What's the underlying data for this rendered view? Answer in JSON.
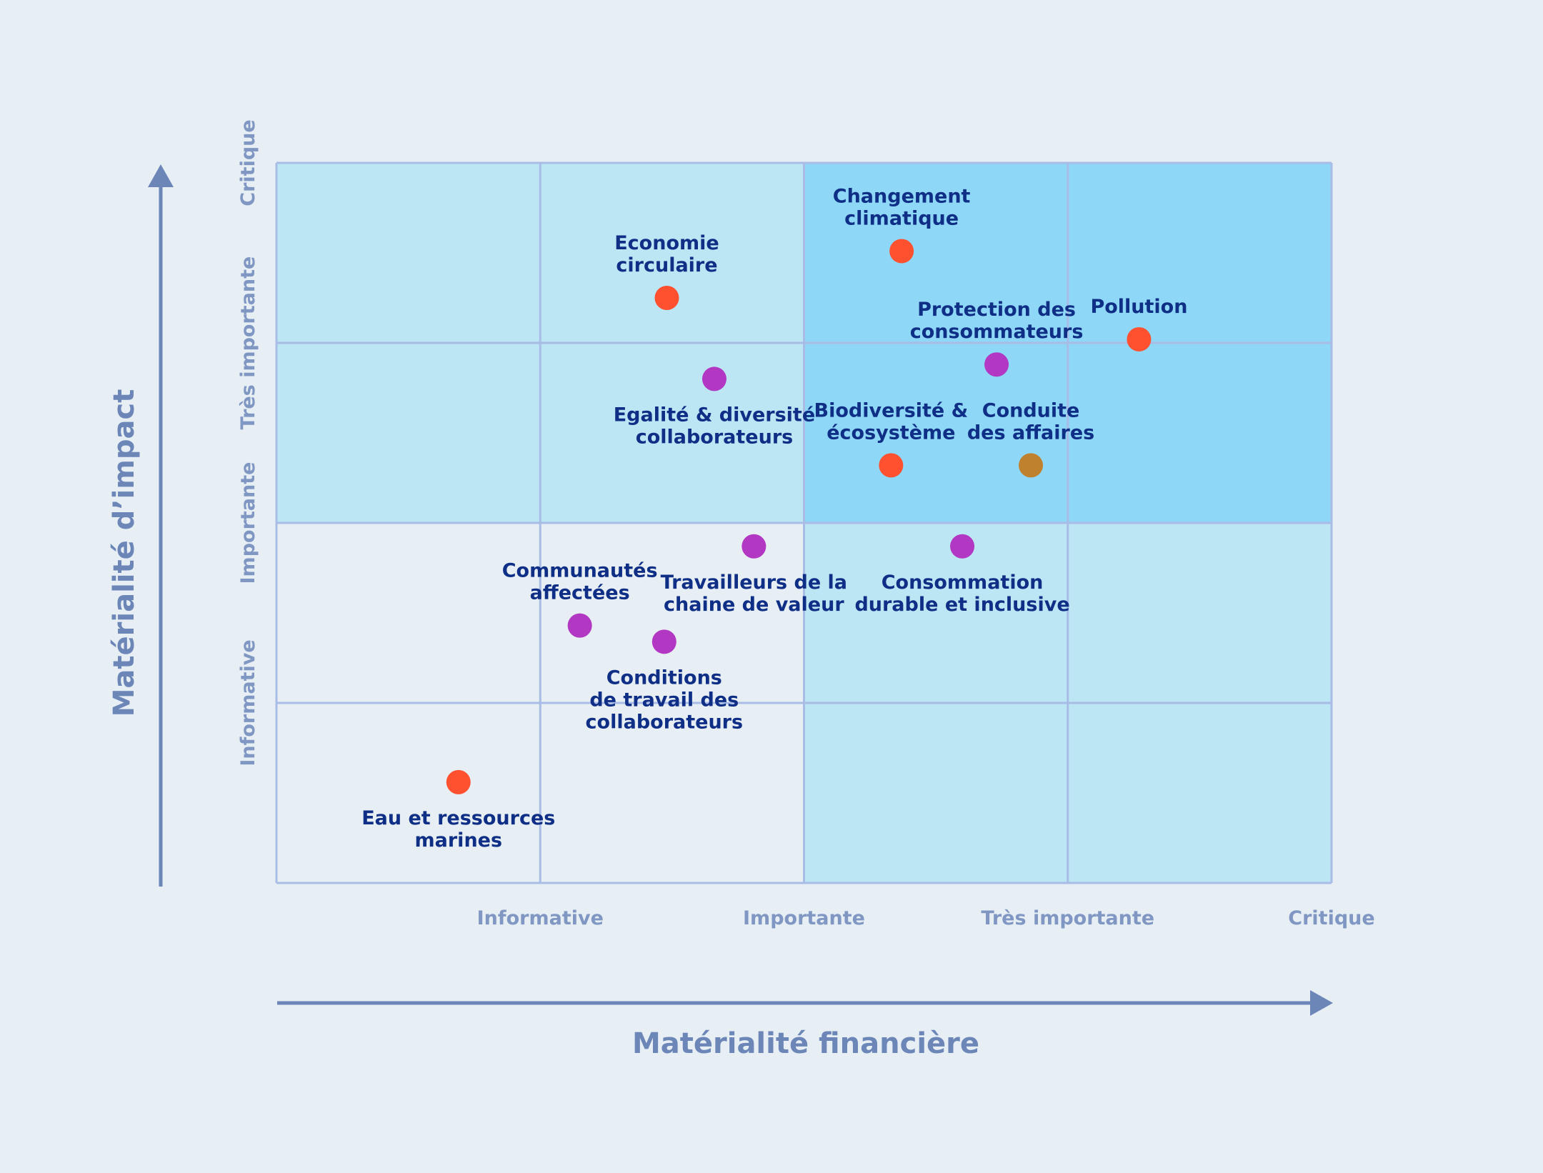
{
  "chart_data": {
    "type": "scatter",
    "xlabel": "Matérialité financière",
    "ylabel": "Matérialité d’impact",
    "x_tick_labels": [
      "Informative",
      "Importante",
      "Très importante",
      "Critique"
    ],
    "y_tick_labels": [
      "Informative",
      "Importante",
      "Très importante",
      "Critique"
    ],
    "xlim": [
      0,
      4
    ],
    "ylim": [
      0,
      4
    ],
    "grid": true,
    "legend": "none",
    "colors": {
      "background": "#e7eff5",
      "zone_light": "#bde6f5",
      "zone_strong": "#8fd7f7",
      "zone_none": "#e7eff5",
      "grid": "#a9bce6",
      "axis": "#6c86b8",
      "environment": "#ff5030",
      "social": "#b237c2",
      "governance": "#c0812f",
      "label": "#0f2f86"
    },
    "zones": [
      {
        "x": [
          0,
          1
        ],
        "y": [
          0,
          1
        ],
        "level": "none"
      },
      {
        "x": [
          1,
          2
        ],
        "y": [
          0,
          1
        ],
        "level": "none"
      },
      {
        "x": [
          0,
          1
        ],
        "y": [
          1,
          2
        ],
        "level": "none"
      },
      {
        "x": [
          1,
          2
        ],
        "y": [
          1,
          2
        ],
        "level": "none"
      },
      {
        "x": [
          2,
          3
        ],
        "y": [
          0,
          1
        ],
        "level": "light"
      },
      {
        "x": [
          3,
          4
        ],
        "y": [
          0,
          1
        ],
        "level": "light"
      },
      {
        "x": [
          2,
          3
        ],
        "y": [
          1,
          2
        ],
        "level": "light"
      },
      {
        "x": [
          3,
          4
        ],
        "y": [
          1,
          2
        ],
        "level": "light"
      },
      {
        "x": [
          0,
          1
        ],
        "y": [
          2,
          3
        ],
        "level": "light"
      },
      {
        "x": [
          1,
          2
        ],
        "y": [
          2,
          3
        ],
        "level": "light"
      },
      {
        "x": [
          0,
          1
        ],
        "y": [
          3,
          4
        ],
        "level": "light"
      },
      {
        "x": [
          1,
          2
        ],
        "y": [
          3,
          4
        ],
        "level": "light"
      },
      {
        "x": [
          2,
          3
        ],
        "y": [
          2,
          3
        ],
        "level": "strong"
      },
      {
        "x": [
          3,
          4
        ],
        "y": [
          2,
          3
        ],
        "level": "strong"
      },
      {
        "x": [
          2,
          3
        ],
        "y": [
          3,
          4
        ],
        "level": "strong"
      },
      {
        "x": [
          3,
          4
        ],
        "y": [
          3,
          4
        ],
        "level": "strong"
      }
    ],
    "points": [
      {
        "label": [
          "Changement",
          "climatique"
        ],
        "x": 2.37,
        "y": 3.51,
        "category": "environment",
        "label_pos": "above"
      },
      {
        "label": [
          "Economie",
          "circulaire"
        ],
        "x": 1.48,
        "y": 3.25,
        "category": "environment",
        "label_pos": "above"
      },
      {
        "label": [
          "Pollution"
        ],
        "x": 3.27,
        "y": 3.02,
        "category": "environment",
        "label_pos": "above"
      },
      {
        "label": [
          "Protection des",
          "consommateurs"
        ],
        "x": 2.73,
        "y": 2.88,
        "category": "social",
        "label_pos": "above"
      },
      {
        "label": [
          "Egalité & diversité",
          "collaborateurs"
        ],
        "x": 1.66,
        "y": 2.8,
        "category": "social",
        "label_pos": "below"
      },
      {
        "label": [
          "Biodiversité &",
          "écosystème"
        ],
        "x": 2.33,
        "y": 2.32,
        "category": "environment",
        "label_pos": "above"
      },
      {
        "label": [
          "Conduite",
          "des affaires"
        ],
        "x": 2.86,
        "y": 2.32,
        "category": "governance",
        "label_pos": "above"
      },
      {
        "label": [
          "Travailleurs de la",
          "chaine de valeur"
        ],
        "x": 1.81,
        "y": 1.87,
        "category": "social",
        "label_pos": "below"
      },
      {
        "label": [
          "Consommation",
          "durable et inclusive"
        ],
        "x": 2.6,
        "y": 1.87,
        "category": "social",
        "label_pos": "below"
      },
      {
        "label": [
          "Communautés",
          "affectées"
        ],
        "x": 1.15,
        "y": 1.43,
        "category": "social",
        "label_pos": "above"
      },
      {
        "label": [
          "Conditions",
          "de travail des",
          "collaborateurs"
        ],
        "x": 1.47,
        "y": 1.34,
        "category": "social",
        "label_pos": "below"
      },
      {
        "label": [
          "Eau et ressources",
          "marines"
        ],
        "x": 0.69,
        "y": 0.56,
        "category": "environment",
        "label_pos": "below"
      }
    ]
  }
}
